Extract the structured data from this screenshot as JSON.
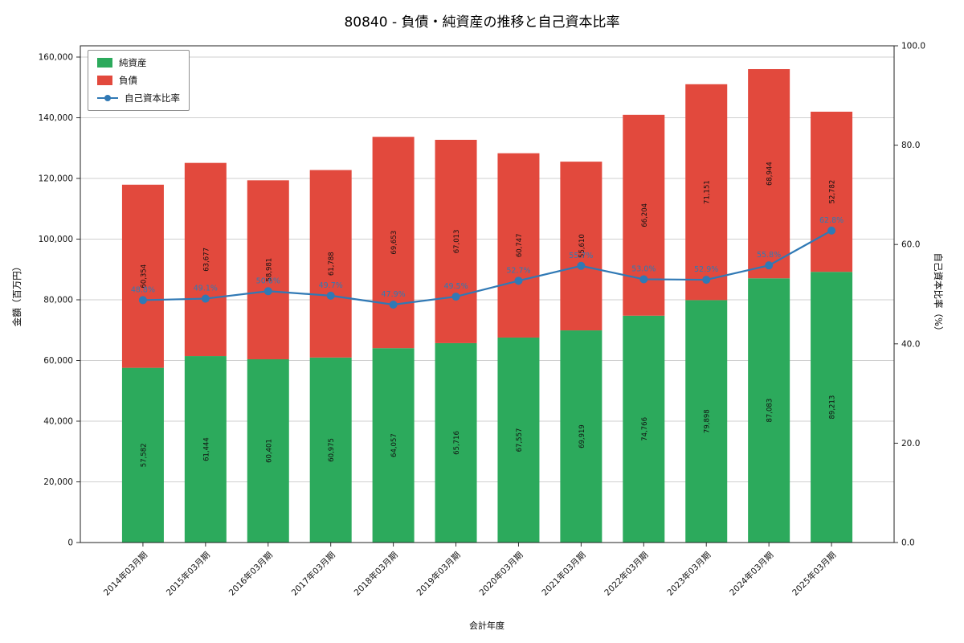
{
  "title": "80840 - 負債・純資産の推移と自己資本比率",
  "chart_data": {
    "type": "bar",
    "subtype": "stacked-bars-with-line",
    "categories": [
      "2014年03月期",
      "2015年03月期",
      "2016年03月期",
      "2017年03月期",
      "2018年03月期",
      "2019年03月期",
      "2020年03月期",
      "2021年03月期",
      "2022年03月期",
      "2023年03月期",
      "2024年03月期",
      "2025年03月期"
    ],
    "series": [
      {
        "name": "純資産",
        "type": "bar",
        "color": "#2caa5c",
        "values": [
          57582,
          61444,
          60401,
          60975,
          64057,
          65716,
          67557,
          69919,
          74766,
          79898,
          87083,
          89213
        ],
        "labels": [
          "57,582",
          "61,444",
          "60,401",
          "60,975",
          "64,057",
          "65,716",
          "67,557",
          "69,919",
          "74,766",
          "79,898",
          "87,083",
          "89,213"
        ]
      },
      {
        "name": "負債",
        "type": "bar",
        "color": "#e2493d",
        "values": [
          60354,
          63677,
          58981,
          61788,
          69653,
          67013,
          60747,
          55610,
          66204,
          71151,
          68944,
          52782
        ],
        "labels": [
          "60,354",
          "63,677",
          "58,981",
          "61,788",
          "69,653",
          "67,013",
          "60,747",
          "55,610",
          "66,204",
          "71,151",
          "68,944",
          "52,782"
        ]
      },
      {
        "name": "自己資本比率",
        "type": "line",
        "color": "#3079b5",
        "values": [
          48.8,
          49.1,
          50.6,
          49.7,
          47.9,
          49.5,
          52.7,
          55.7,
          53.0,
          52.9,
          55.8,
          62.8
        ],
        "labels": [
          "48.8%",
          "49.1%",
          "50.6%",
          "49.7%",
          "47.9%",
          "49.5%",
          "52.7%",
          "55.7%",
          "53.0%",
          "52.9%",
          "55.8%",
          "62.8%"
        ]
      }
    ],
    "xlabel": "会計年度",
    "ylabel_left": "金額（百万円）",
    "ylabel_right": "自己資本比率（%）",
    "ylim_left": [
      0,
      163700
    ],
    "ylim_right": [
      0,
      100
    ],
    "yticks_left": [
      "0",
      "20,000",
      "40,000",
      "60,000",
      "80,000",
      "100,000",
      "120,000",
      "140,000",
      "160,000"
    ],
    "yticks_right": [
      "0.0",
      "20.0",
      "40.0",
      "60.0",
      "80.0",
      "100.0"
    ],
    "grid": true,
    "legend_position": "upper-left"
  }
}
